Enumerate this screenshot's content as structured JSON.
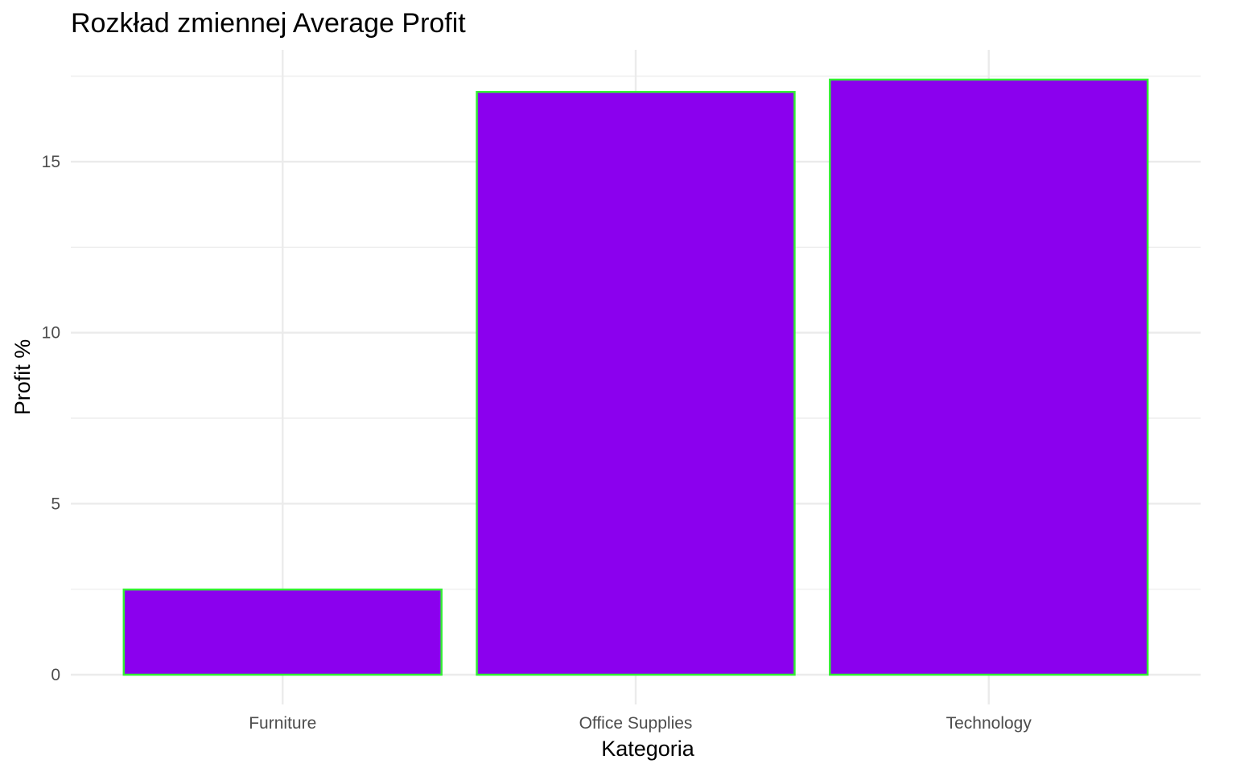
{
  "chart_data": {
    "type": "bar",
    "title": "Rozkład zmiennej Average Profit",
    "xlabel": "Kategoria",
    "ylabel": "Profit %",
    "categories": [
      "Furniture",
      "Office Supplies",
      "Technology"
    ],
    "values": [
      2.49,
      17.04,
      17.4
    ],
    "ylim": [
      -0.87,
      18.27
    ],
    "yticks": [
      0,
      5,
      10,
      15
    ],
    "ytick_labels": [
      "0",
      "5",
      "10",
      "15"
    ],
    "grid": true,
    "legend": "none",
    "colors": {
      "bar_fill": "#8B00EE",
      "bar_stroke": "#33EE33",
      "grid_major": "#EBEBEB",
      "grid_minor": "#F2F2F2",
      "tick_text": "#4D4D4D",
      "text": "#000000"
    }
  }
}
